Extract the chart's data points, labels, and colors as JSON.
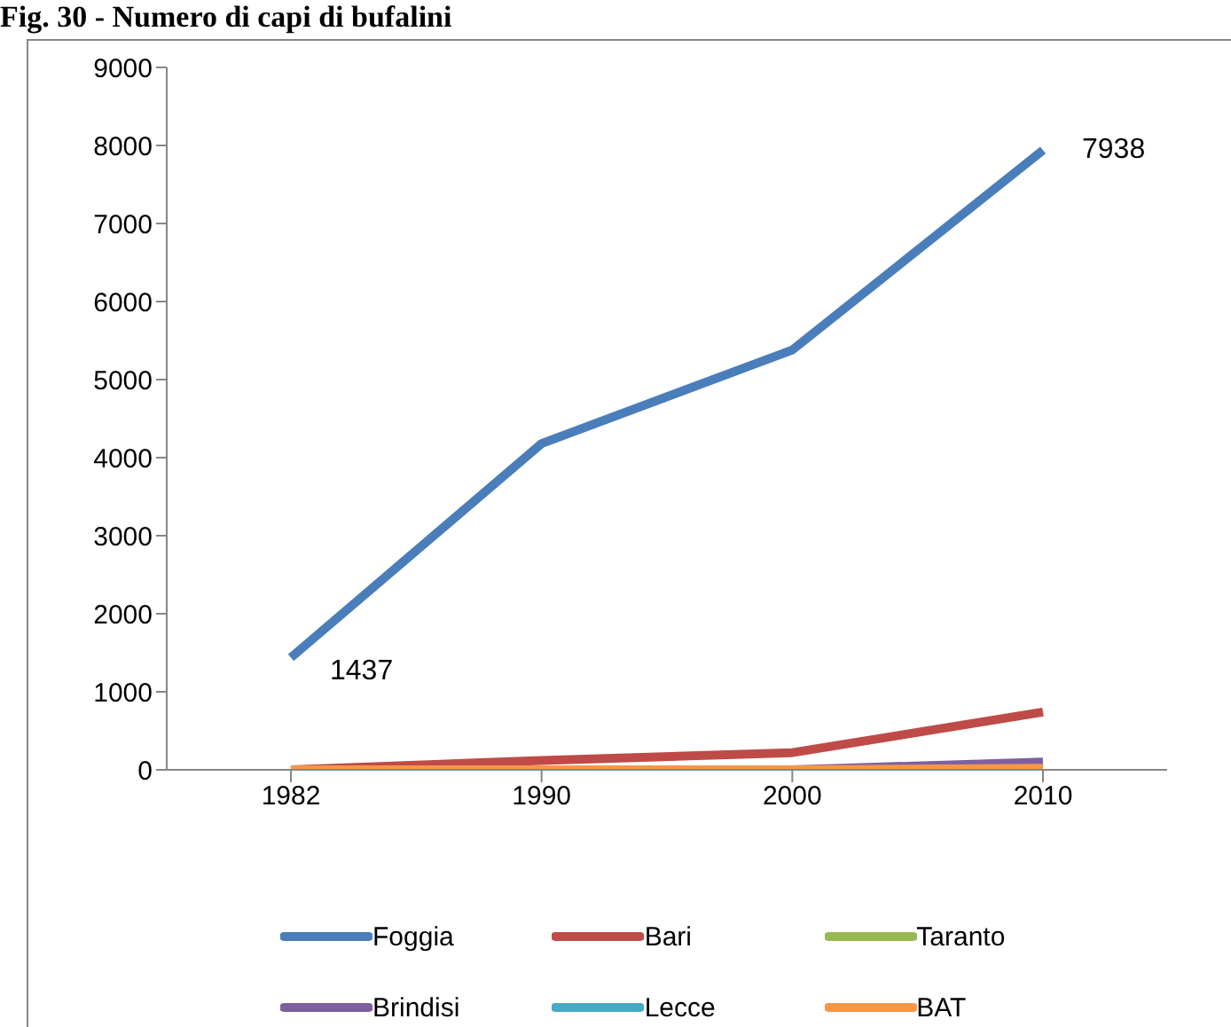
{
  "chart_data": {
    "type": "line",
    "title": "Fig. 30 - Numero di capi  di bufalini",
    "categories": [
      "1982",
      "1990",
      "2000",
      "2010"
    ],
    "series": [
      {
        "name": "Foggia",
        "color": "#4a7ebb",
        "values": [
          1437,
          4180,
          5380,
          7938
        ],
        "value_labels": [
          "1437",
          null,
          null,
          "7938"
        ]
      },
      {
        "name": "Bari",
        "color": "#be4b48",
        "values": [
          0,
          120,
          220,
          740
        ]
      },
      {
        "name": "Taranto",
        "color": "#98b954",
        "values": [
          null,
          null,
          null,
          null
        ]
      },
      {
        "name": "Brindisi",
        "color": "#7d60a0",
        "values": [
          null,
          null,
          0,
          100
        ]
      },
      {
        "name": "Lecce",
        "color": "#46aac5",
        "values": [
          null,
          null,
          null,
          null
        ]
      },
      {
        "name": "BAT",
        "color": "#f79646",
        "values": [
          0,
          0,
          0,
          20
        ]
      }
    ],
    "ylim": [
      0,
      9000
    ],
    "yticks": [
      0,
      1000,
      2000,
      3000,
      4000,
      5000,
      6000,
      7000,
      8000,
      9000
    ],
    "grid": false,
    "legend": "bottom",
    "marker": "none",
    "line_style": "solid"
  }
}
